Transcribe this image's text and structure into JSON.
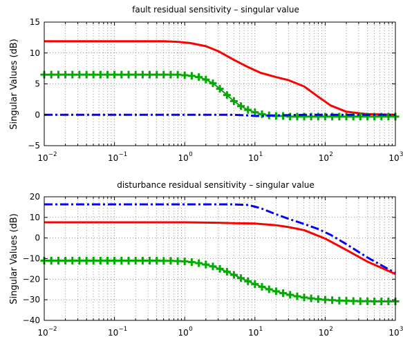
{
  "chart_data": [
    {
      "type": "line",
      "title": "fault residual sensitivity – singular value",
      "xlabel": "",
      "ylabel": "Singular Values (dB)",
      "xscale": "log",
      "xlim": [
        0.01,
        1000
      ],
      "ylim": [
        -5,
        15
      ],
      "xticks": [
        {
          "base": "10",
          "exp": "−2"
        },
        {
          "base": "10",
          "exp": "−1"
        },
        {
          "base": "10",
          "exp": "0"
        },
        {
          "base": "10",
          "exp": "1"
        },
        {
          "base": "10",
          "exp": "2"
        },
        {
          "base": "10",
          "exp": "3"
        }
      ],
      "yticks": [
        "−5",
        "0",
        "5",
        "10",
        "15"
      ],
      "ytick_values": [
        -5,
        0,
        5,
        10,
        15
      ],
      "grid": true,
      "series": [
        {
          "style": "solid",
          "color": "#ff0000",
          "marker": "none",
          "x": [
            0.01,
            0.1,
            0.5,
            0.8,
            1.2,
            2,
            3,
            5,
            8,
            12,
            20,
            30,
            50,
            80,
            120,
            200,
            400,
            1000
          ],
          "y": [
            11.9,
            11.9,
            11.9,
            11.8,
            11.6,
            11.1,
            10.3,
            8.9,
            7.7,
            6.8,
            6.1,
            5.6,
            4.6,
            2.9,
            1.5,
            0.5,
            0.1,
            0.0
          ]
        },
        {
          "style": "solid",
          "color": "#00aa00",
          "marker": "plus",
          "x": [
            0.01,
            0.0126,
            0.0159,
            0.02,
            0.0252,
            0.0317,
            0.04,
            0.0502,
            0.0632,
            0.0796,
            0.1,
            0.126,
            0.159,
            0.2,
            0.252,
            0.317,
            0.4,
            0.502,
            0.632,
            0.796,
            1,
            1.26,
            1.59,
            2,
            2.52,
            3.17,
            4,
            5.02,
            6.32,
            7.96,
            10,
            12.6,
            15.9,
            20,
            25.2,
            31.7,
            40,
            50.2,
            63.2,
            79.6,
            100,
            126,
            159,
            200,
            252,
            317,
            400,
            502,
            632,
            796,
            1000
          ],
          "y": [
            6.5,
            6.5,
            6.5,
            6.5,
            6.5,
            6.5,
            6.5,
            6.5,
            6.5,
            6.5,
            6.5,
            6.5,
            6.5,
            6.5,
            6.5,
            6.5,
            6.5,
            6.5,
            6.5,
            6.5,
            6.4,
            6.3,
            6.1,
            5.7,
            5.1,
            4.2,
            3.2,
            2.2,
            1.4,
            0.8,
            0.4,
            0.1,
            -0.1,
            -0.2,
            -0.2,
            -0.3,
            -0.3,
            -0.3,
            -0.3,
            -0.3,
            -0.3,
            -0.3,
            -0.3,
            -0.3,
            -0.3,
            -0.3,
            -0.3,
            -0.3,
            -0.3,
            -0.3,
            -0.3
          ]
        },
        {
          "style": "dashdot",
          "color": "#0000ff",
          "marker": "none",
          "x": [
            0.01,
            0.1,
            1,
            5,
            8,
            10,
            13,
            20,
            50,
            100,
            300,
            1000
          ],
          "y": [
            0.0,
            0.0,
            0.0,
            0.0,
            -0.1,
            -0.2,
            -0.2,
            -0.1,
            0.0,
            0.0,
            0.0,
            0.0
          ]
        }
      ]
    },
    {
      "type": "line",
      "title": "disturbance residual sensitivity – singular value",
      "xlabel": "",
      "ylabel": "Singular Values (dB)",
      "xscale": "log",
      "xlim": [
        0.01,
        1000
      ],
      "ylim": [
        -40,
        20
      ],
      "xticks": [
        {
          "base": "10",
          "exp": "−2"
        },
        {
          "base": "10",
          "exp": "−1"
        },
        {
          "base": "10",
          "exp": "0"
        },
        {
          "base": "10",
          "exp": "1"
        },
        {
          "base": "10",
          "exp": "2"
        },
        {
          "base": "10",
          "exp": "3"
        }
      ],
      "yticks": [
        "−40",
        "−30",
        "−20",
        "−10",
        "0",
        "10",
        "20"
      ],
      "ytick_values": [
        -40,
        -30,
        -20,
        -10,
        0,
        10,
        20
      ],
      "grid": true,
      "series": [
        {
          "style": "dashdot",
          "color": "#0000ff",
          "marker": "none",
          "x": [
            0.01,
            0.1,
            1,
            5,
            8,
            12,
            20,
            30,
            50,
            80,
            120,
            200,
            400,
            1000
          ],
          "y": [
            16.3,
            16.3,
            16.3,
            16.3,
            16.0,
            14.5,
            11.5,
            9.3,
            6.8,
            4.3,
            1.5,
            -3.0,
            -9.5,
            -17.0
          ]
        },
        {
          "style": "solid",
          "color": "#ff0000",
          "marker": "none",
          "x": [
            0.01,
            0.1,
            1,
            3,
            5,
            10,
            20,
            30,
            50,
            100,
            200,
            400,
            1000
          ],
          "y": [
            7.6,
            7.6,
            7.6,
            7.4,
            7.2,
            7.0,
            6.2,
            5.3,
            3.8,
            -0.3,
            -5.8,
            -11.5,
            -17.5
          ]
        },
        {
          "style": "solid",
          "color": "#00aa00",
          "marker": "plus",
          "x": [
            0.01,
            0.0126,
            0.0159,
            0.02,
            0.0252,
            0.0317,
            0.04,
            0.0502,
            0.0632,
            0.0796,
            0.1,
            0.126,
            0.159,
            0.2,
            0.252,
            0.317,
            0.4,
            0.502,
            0.632,
            0.796,
            1,
            1.26,
            1.59,
            2,
            2.52,
            3.17,
            4,
            5.02,
            6.32,
            7.96,
            10,
            12.6,
            15.9,
            20,
            25.2,
            31.7,
            40,
            50.2,
            63.2,
            79.6,
            100,
            126,
            159,
            200,
            252,
            317,
            400,
            502,
            632,
            796,
            1000
          ],
          "y": [
            -11.0,
            -11.0,
            -11.0,
            -11.0,
            -11.0,
            -11.0,
            -11.0,
            -11.0,
            -11.0,
            -11.0,
            -11.0,
            -11.0,
            -11.0,
            -11.0,
            -11.0,
            -11.0,
            -11.0,
            -11.1,
            -11.1,
            -11.2,
            -11.4,
            -11.7,
            -12.2,
            -12.9,
            -13.8,
            -15.0,
            -16.4,
            -17.9,
            -19.5,
            -21.0,
            -22.4,
            -23.7,
            -24.9,
            -25.9,
            -26.8,
            -27.6,
            -28.3,
            -28.9,
            -29.3,
            -29.7,
            -30.0,
            -30.2,
            -30.4,
            -30.5,
            -30.6,
            -30.7,
            -30.7,
            -30.8,
            -30.8,
            -30.8,
            -30.8
          ]
        }
      ]
    }
  ]
}
